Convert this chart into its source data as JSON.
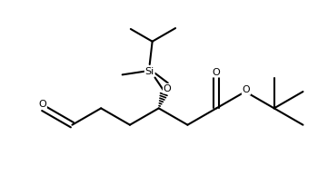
{
  "background": "#ffffff",
  "line_color": "#000000",
  "lw": 1.5,
  "figsize": [
    3.5,
    2.04
  ],
  "dpi": 100,
  "xlim": [
    -0.05,
    3.5
  ],
  "ylim": [
    -0.05,
    2.05
  ]
}
